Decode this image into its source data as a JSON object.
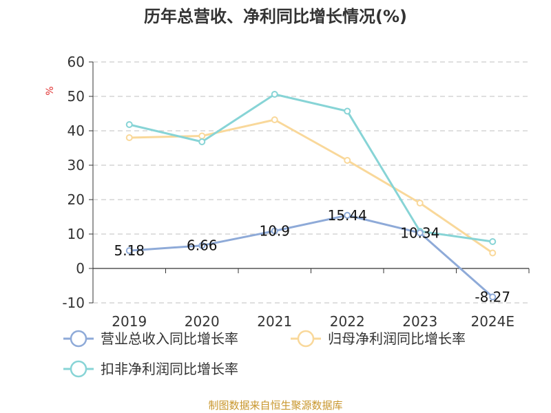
{
  "chart_data": {
    "type": "line",
    "title": "历年总营收、净利同比增长情况(%)",
    "ylabel": "%",
    "xlabel": "",
    "categories": [
      "2019",
      "2020",
      "2021",
      "2022",
      "2023",
      "2024E"
    ],
    "ylim": [
      -10,
      60
    ],
    "yticks": [
      60,
      50,
      40,
      30,
      20,
      10,
      0,
      -10
    ],
    "grid": true,
    "legend": "bottom",
    "series": [
      {
        "name": "营业总收入同比增长率",
        "color": "#8eaad8",
        "values": [
          5.18,
          6.66,
          10.9,
          15.44,
          10.34,
          -8.27
        ],
        "labels": [
          "5.18",
          "6.66",
          "10.9",
          "15.44",
          "10.34",
          "-8.27"
        ]
      },
      {
        "name": "归母净利润同比增长率",
        "color": "#f9d89a",
        "values": [
          38,
          38.5,
          43.2,
          31.4,
          19,
          4.5
        ]
      },
      {
        "name": "扣非净利润同比增长率",
        "color": "#87d4d6",
        "values": [
          41.8,
          36.8,
          50.6,
          45.7,
          10.8,
          7.8
        ]
      }
    ]
  },
  "source": "制图数据来自恒生聚源数据库"
}
